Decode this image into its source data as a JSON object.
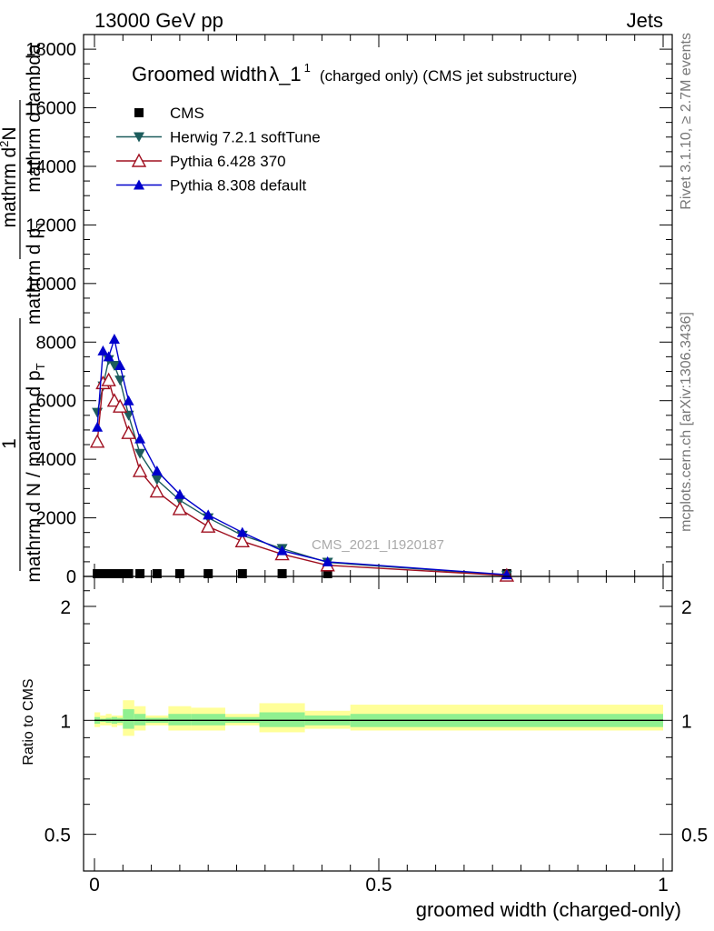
{
  "header": {
    "left": "13000 GeV pp",
    "right": "Jets"
  },
  "side_labels": {
    "rivet": "Rivet 3.1.10, ≥ 2.7M events",
    "mcplots": "mcplots.cern.ch [arXiv:1306.3436]"
  },
  "watermark": "CMS_2021_I1920187",
  "chart_data": [
    {
      "type": "line",
      "title_main": "Groomed width",
      "title_sym": "λ_1",
      "title_sup": "1",
      "title_tail": "(charged only) (CMS jet substructure)",
      "ylabel_num": "1",
      "ylabel_frac1": "mathrm d N / mathrm d p",
      "ylabel_frac1_sub": "T",
      "ylabel_frac2_num": "mathrm d",
      "ylabel_frac2_num_sup": "2",
      "ylabel_frac2_tail": "N",
      "ylabel_frac3": "mathrm d p",
      "ylabel_frac3_sub": "T",
      "ylabel_frac4": "mathrm d lambda",
      "xlim": [
        0,
        1
      ],
      "ylim": [
        0,
        18500
      ],
      "y_ticks": [
        0,
        2000,
        4000,
        6000,
        8000,
        10000,
        12000,
        14000,
        16000,
        18000
      ],
      "y_tick_labels": [
        "0",
        "2000",
        "4000",
        "6000",
        "8000",
        "10000",
        "12000",
        "14000",
        "16000",
        "18000"
      ],
      "legend_position": "top-left",
      "series": [
        {
          "name": "CMS",
          "marker": "square",
          "color": "#000000",
          "x": [
            0.005,
            0.015,
            0.025,
            0.035,
            0.045,
            0.06,
            0.08,
            0.11,
            0.15,
            0.2,
            0.26,
            0.33,
            0.41,
            0.725
          ],
          "y": [
            40,
            40,
            40,
            40,
            40,
            40,
            40,
            40,
            40,
            40,
            40,
            40,
            40,
            40
          ]
        },
        {
          "name": "Herwig 7.2.1 softTune",
          "marker": "triangle-down",
          "color": "#1c5c5c",
          "x": [
            0.005,
            0.015,
            0.025,
            0.035,
            0.045,
            0.06,
            0.08,
            0.11,
            0.15,
            0.2,
            0.26,
            0.33,
            0.41,
            0.725
          ],
          "y": [
            5600,
            6500,
            7400,
            7200,
            6700,
            5500,
            4200,
            3300,
            2600,
            2000,
            1400,
            950,
            480,
            40
          ]
        },
        {
          "name": "Pythia 6.428 370",
          "marker": "triangle-open",
          "color": "#a01020",
          "x": [
            0.005,
            0.015,
            0.025,
            0.035,
            0.045,
            0.06,
            0.08,
            0.11,
            0.15,
            0.2,
            0.26,
            0.33,
            0.41,
            0.725
          ],
          "y": [
            4600,
            6600,
            6700,
            6000,
            5800,
            4900,
            3600,
            2900,
            2300,
            1700,
            1200,
            760,
            380,
            30
          ]
        },
        {
          "name": "Pythia 8.308 default",
          "marker": "triangle-up",
          "color": "#0000cc",
          "x": [
            0.005,
            0.015,
            0.025,
            0.035,
            0.045,
            0.06,
            0.08,
            0.11,
            0.15,
            0.2,
            0.26,
            0.33,
            0.41,
            0.725
          ],
          "y": [
            5100,
            7700,
            7500,
            8100,
            7200,
            6000,
            4700,
            3600,
            2800,
            2100,
            1500,
            880,
            500,
            60
          ]
        }
      ]
    },
    {
      "type": "area",
      "ylabel": "Ratio to CMS",
      "xlabel": "groomed width (charged-only)",
      "xlim": [
        0,
        1
      ],
      "ylim": [
        0.4,
        2.4
      ],
      "y_scale": "log",
      "y_ticks": [
        0.5,
        1,
        2
      ],
      "y_tick_labels": [
        "0.5",
        "1",
        "2"
      ],
      "x_ticks": [
        0,
        0.5,
        1
      ],
      "x_tick_labels": [
        "0",
        "0.5",
        "1"
      ],
      "band_colors": {
        "outer": "#ffff99",
        "inner": "#90f090"
      },
      "reference_line": 1,
      "bins": [
        {
          "x0": 0.0,
          "x1": 0.01,
          "outer": [
            0.96,
            1.05
          ],
          "inner": [
            0.98,
            1.02
          ]
        },
        {
          "x0": 0.01,
          "x1": 0.02,
          "outer": [
            0.97,
            1.03
          ],
          "inner": [
            0.99,
            1.01
          ]
        },
        {
          "x0": 0.02,
          "x1": 0.03,
          "outer": [
            0.97,
            1.04
          ],
          "inner": [
            0.985,
            1.015
          ]
        },
        {
          "x0": 0.03,
          "x1": 0.04,
          "outer": [
            0.96,
            1.03
          ],
          "inner": [
            0.98,
            1.02
          ]
        },
        {
          "x0": 0.04,
          "x1": 0.05,
          "outer": [
            0.97,
            1.03
          ],
          "inner": [
            0.985,
            1.015
          ]
        },
        {
          "x0": 0.05,
          "x1": 0.07,
          "outer": [
            0.91,
            1.13
          ],
          "inner": [
            0.95,
            1.07
          ]
        },
        {
          "x0": 0.07,
          "x1": 0.09,
          "outer": [
            0.94,
            1.09
          ],
          "inner": [
            0.97,
            1.04
          ]
        },
        {
          "x0": 0.09,
          "x1": 0.13,
          "outer": [
            0.97,
            1.03
          ],
          "inner": [
            0.985,
            1.015
          ]
        },
        {
          "x0": 0.13,
          "x1": 0.17,
          "outer": [
            0.94,
            1.09
          ],
          "inner": [
            0.97,
            1.04
          ]
        },
        {
          "x0": 0.17,
          "x1": 0.23,
          "outer": [
            0.94,
            1.08
          ],
          "inner": [
            0.97,
            1.04
          ]
        },
        {
          "x0": 0.23,
          "x1": 0.29,
          "outer": [
            0.97,
            1.04
          ],
          "inner": [
            0.985,
            1.02
          ]
        },
        {
          "x0": 0.29,
          "x1": 0.37,
          "outer": [
            0.93,
            1.11
          ],
          "inner": [
            0.96,
            1.05
          ]
        },
        {
          "x0": 0.37,
          "x1": 0.45,
          "outer": [
            0.95,
            1.06
          ],
          "inner": [
            0.97,
            1.03
          ]
        },
        {
          "x0": 0.45,
          "x1": 1.0,
          "outer": [
            0.94,
            1.1
          ],
          "inner": [
            0.96,
            1.04
          ]
        }
      ]
    }
  ]
}
